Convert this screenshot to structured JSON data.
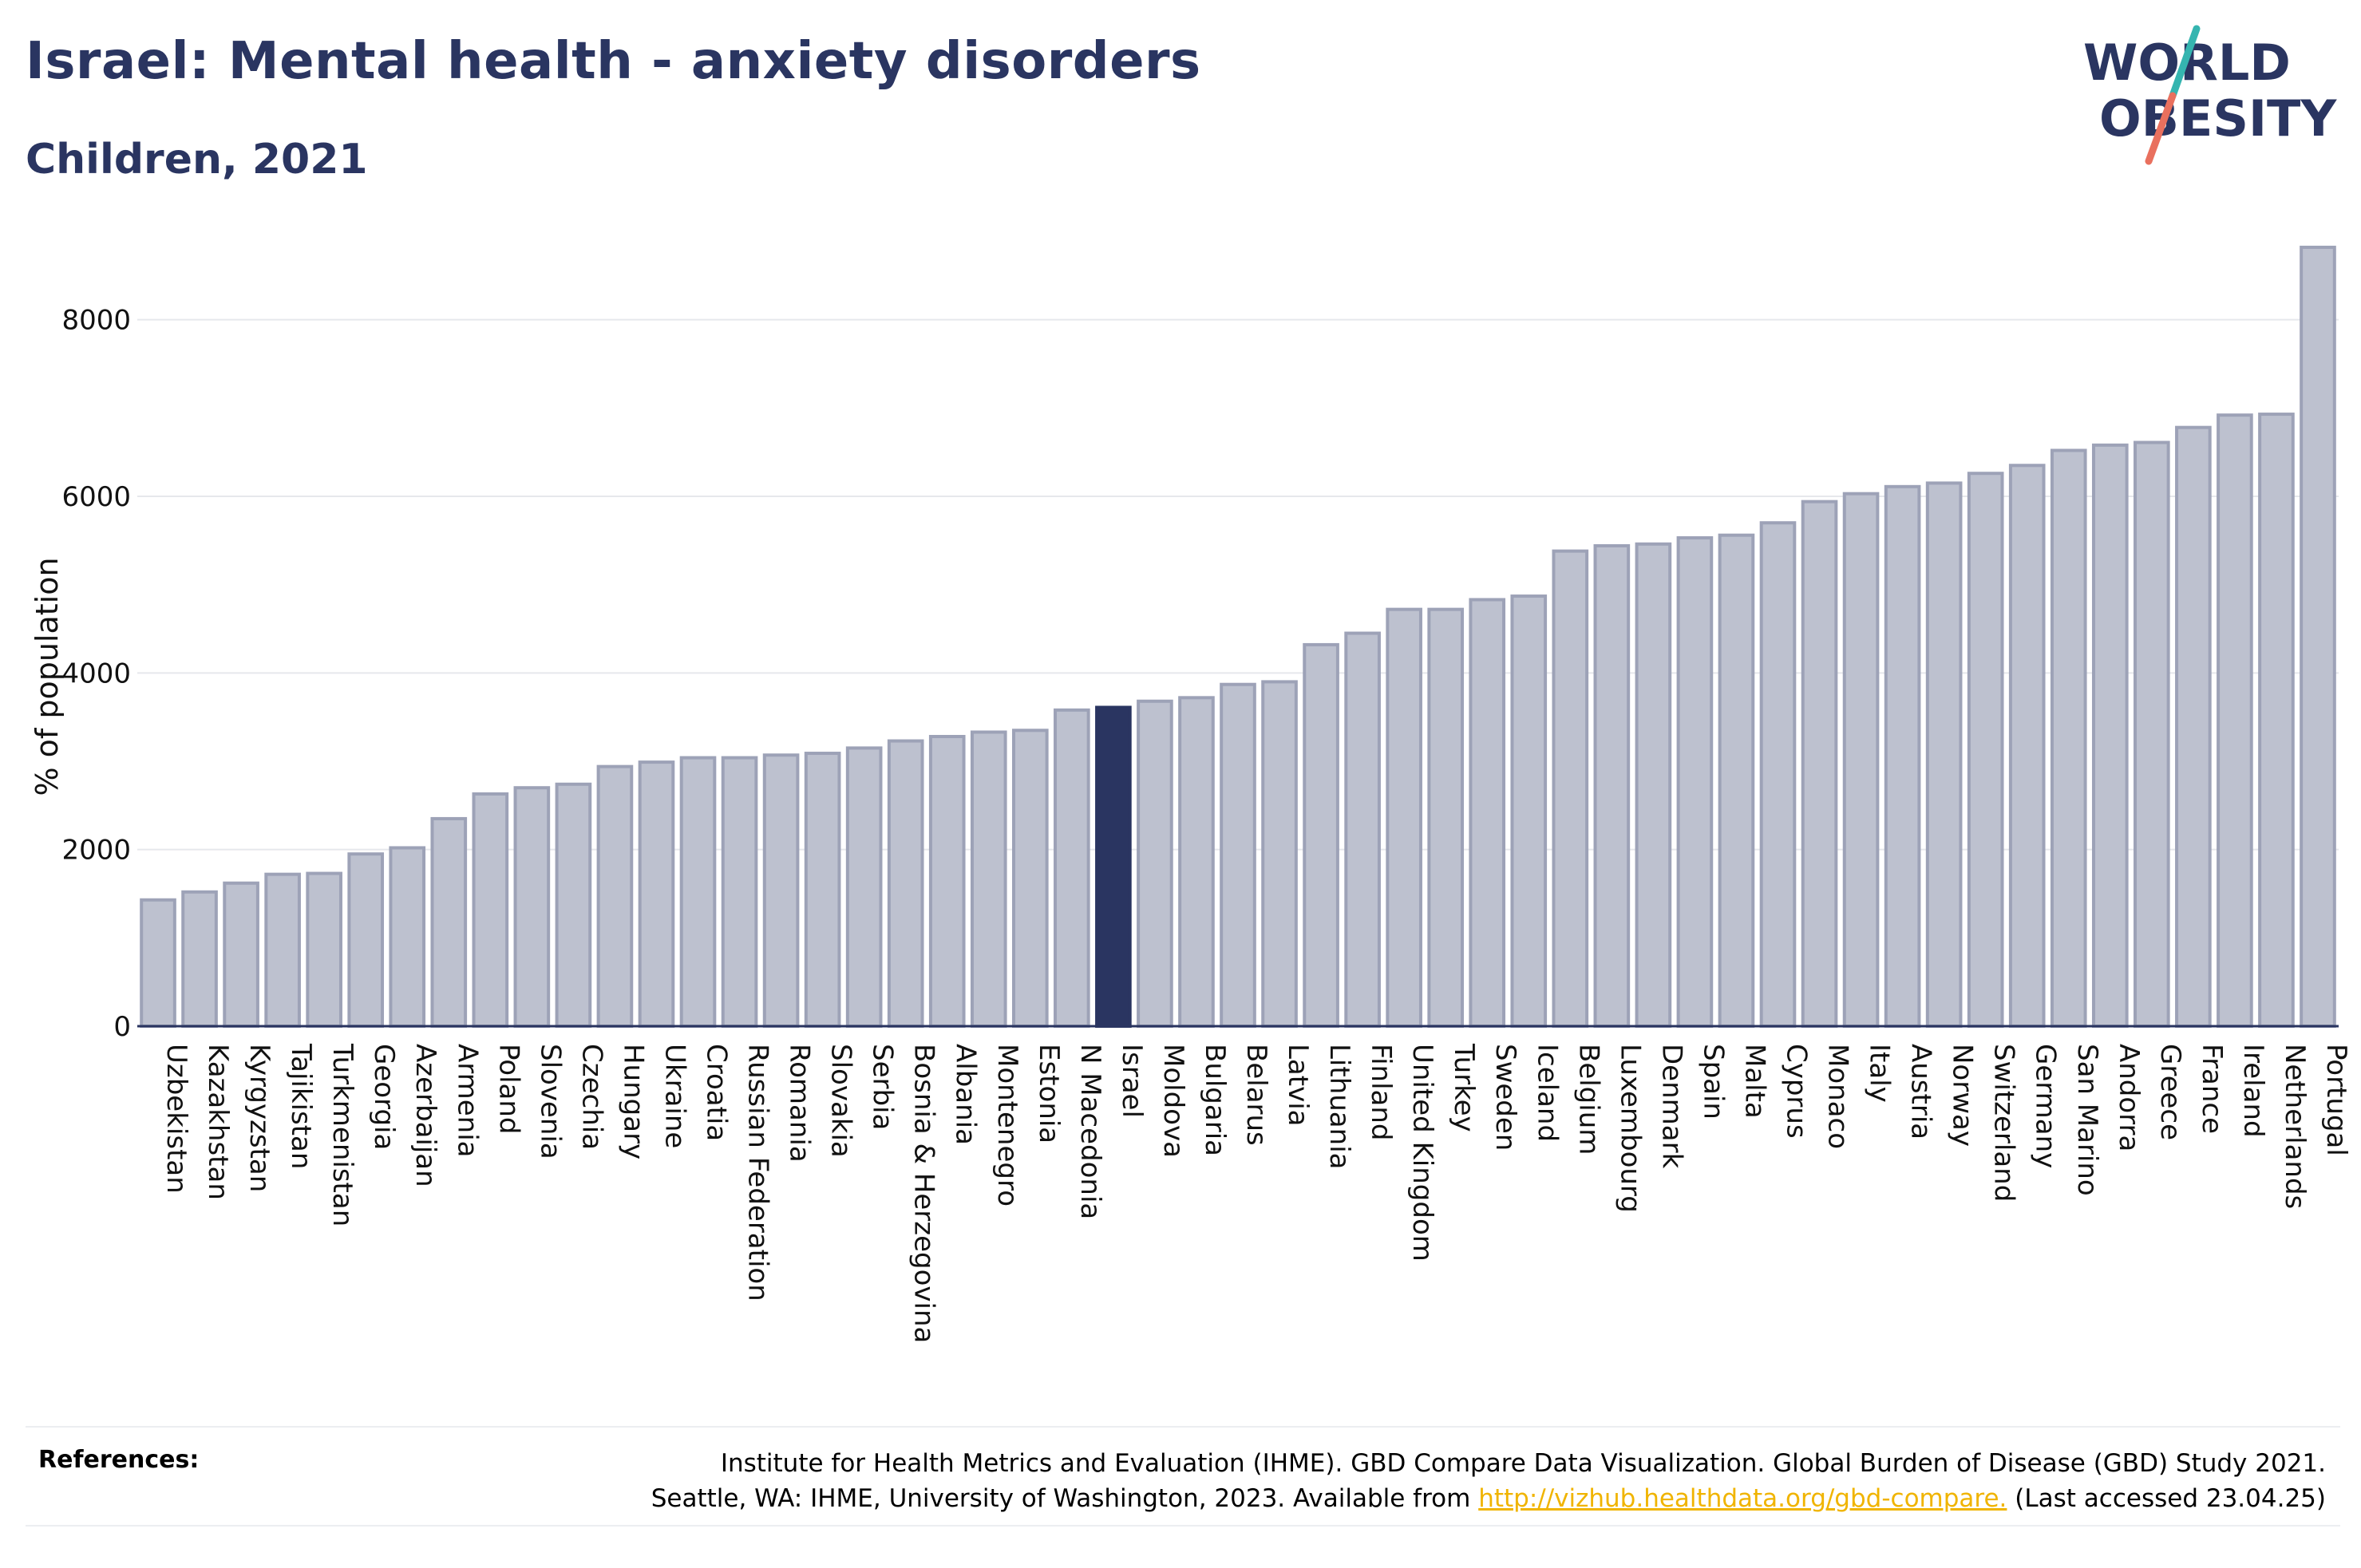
{
  "header": {
    "title": "Israel: Mental health - anxiety disorders",
    "subtitle": "Children, 2021"
  },
  "logo": {
    "line1": "WORLD",
    "line2": "OBESITY"
  },
  "chart_data": {
    "type": "bar",
    "ylabel": "% of population",
    "ylim": [
      0,
      9000
    ],
    "yticks": [
      0,
      2000,
      4000,
      6000,
      8000
    ],
    "grid": true,
    "highlight": "Israel",
    "colors": {
      "bar": "#bdc1cf",
      "bar_edge": "#9da2b7",
      "highlight": "#2a3561",
      "grid": "#e6e8ec",
      "axis": "#2a3561"
    },
    "categories": [
      "Uzbekistan",
      "Kazakhstan",
      "Kyrgyzstan",
      "Tajikistan",
      "Turkmenistan",
      "Georgia",
      "Azerbaijan",
      "Armenia",
      "Poland",
      "Slovenia",
      "Czechia",
      "Hungary",
      "Ukraine",
      "Croatia",
      "Russian Federation",
      "Romania",
      "Slovakia",
      "Serbia",
      "Bosnia & Herzegovina",
      "Albania",
      "Montenegro",
      "Estonia",
      "N Macedonia",
      "Israel",
      "Moldova",
      "Bulgaria",
      "Belarus",
      "Latvia",
      "Lithuania",
      "Finland",
      "United Kingdom",
      "Turkey",
      "Sweden",
      "Iceland",
      "Belgium",
      "Luxembourg",
      "Denmark",
      "Spain",
      "Malta",
      "Cyprus",
      "Monaco",
      "Italy",
      "Austria",
      "Norway",
      "Switzerland",
      "Germany",
      "San Marino",
      "Andorra",
      "Greece",
      "France",
      "Ireland",
      "Netherlands",
      "Portugal"
    ],
    "values": [
      1430,
      1520,
      1620,
      1720,
      1730,
      1950,
      2020,
      2350,
      2630,
      2700,
      2740,
      2940,
      2990,
      3040,
      3040,
      3070,
      3090,
      3150,
      3230,
      3280,
      3330,
      3350,
      3580,
      3610,
      3680,
      3720,
      3870,
      3900,
      4320,
      4450,
      4720,
      4720,
      4830,
      4870,
      5380,
      5440,
      5460,
      5530,
      5560,
      5700,
      5940,
      6030,
      6110,
      6150,
      6260,
      6350,
      6520,
      6580,
      6610,
      6780,
      6920,
      6930,
      8820
    ]
  },
  "references": {
    "label": "References:",
    "line1": "Institute for Health Metrics and Evaluation (IHME). GBD Compare Data Visualization. Global Burden of Disease (GBD) Study 2021.",
    "line2_prefix": "Seattle, WA: IHME, University of Washington, 2023. Available from ",
    "link": "http://vizhub.healthdata.org/gbd-compare.",
    "line2_suffix": " (Last accessed 23.04.25)"
  }
}
